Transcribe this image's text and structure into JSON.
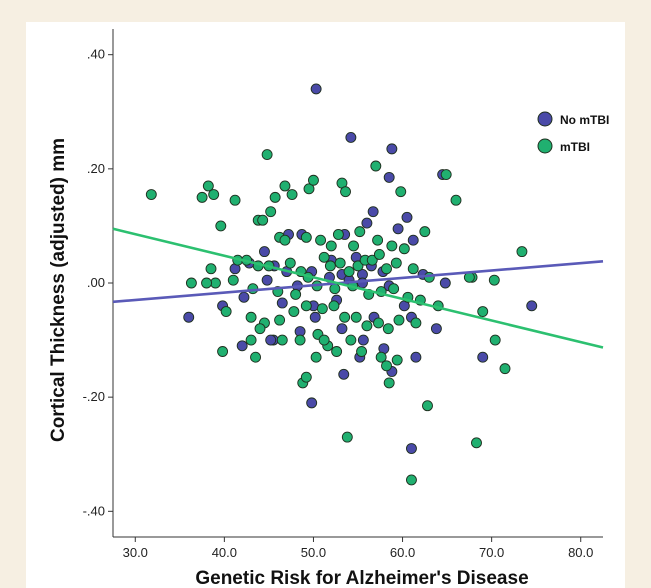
{
  "colors": {
    "no_mtbi": "#4a4aa8",
    "mtbi": "#20b070",
    "no_mtbi_line": "#5a5ab8",
    "mtbi_line": "#2cc070",
    "point_stroke": "#1f2f1f"
  },
  "chart_data": {
    "type": "scatter",
    "xlabel": "Genetic Risk for Alzheimer's Disease",
    "ylabel": "Cortical Thickness (adjusted) mm",
    "xlim": [
      27.5,
      82.5
    ],
    "ylim": [
      -0.445,
      0.445
    ],
    "x_ticks": [
      30,
      40,
      50,
      60,
      70,
      80
    ],
    "x_tick_labels": [
      "30.0",
      "40.0",
      "50.0",
      "60.0",
      "70.0",
      "80.0"
    ],
    "y_ticks": [
      0.4,
      0.2,
      0.0,
      -0.2,
      -0.4
    ],
    "y_tick_labels": [
      ".40",
      ".20",
      ".00",
      "-.20",
      "-.40"
    ],
    "grid": false,
    "legend": {
      "position": "top-right",
      "entries": [
        "No mTBI",
        "mTBI"
      ]
    },
    "series": [
      {
        "name": "No mTBI",
        "color": "#4a4aa8",
        "fit_line": {
          "x": [
            27.5,
            82.5
          ],
          "y": [
            -0.033,
            0.038
          ]
        },
        "points": [
          [
            50.3,
            0.34
          ],
          [
            54.2,
            0.255
          ],
          [
            58.8,
            0.235
          ],
          [
            58.5,
            0.185
          ],
          [
            56.7,
            0.125
          ],
          [
            60.5,
            0.115
          ],
          [
            56.0,
            0.105
          ],
          [
            53.5,
            0.085
          ],
          [
            59.5,
            0.095
          ],
          [
            61.2,
            0.075
          ],
          [
            48.7,
            0.085
          ],
          [
            44.5,
            0.055
          ],
          [
            47.2,
            0.085
          ],
          [
            52.0,
            0.04
          ],
          [
            54.8,
            0.045
          ],
          [
            56.5,
            0.03
          ],
          [
            41.2,
            0.025
          ],
          [
            42.8,
            0.035
          ],
          [
            45.6,
            0.03
          ],
          [
            49.8,
            0.02
          ],
          [
            53.2,
            0.015
          ],
          [
            55.5,
            0.015
          ],
          [
            57.8,
            0.02
          ],
          [
            62.3,
            0.015
          ],
          [
            64.8,
            0.0
          ],
          [
            36.0,
            -0.06
          ],
          [
            39.8,
            -0.04
          ],
          [
            42.2,
            -0.025
          ],
          [
            44.8,
            0.005
          ],
          [
            46.5,
            -0.035
          ],
          [
            48.2,
            -0.005
          ],
          [
            50.0,
            -0.04
          ],
          [
            51.8,
            0.01
          ],
          [
            54.0,
            0.005
          ],
          [
            55.5,
            0.0
          ],
          [
            58.5,
            -0.005
          ],
          [
            60.2,
            -0.04
          ],
          [
            61.0,
            -0.06
          ],
          [
            63.8,
            -0.08
          ],
          [
            74.5,
            -0.04
          ],
          [
            42.0,
            -0.11
          ],
          [
            45.5,
            -0.1
          ],
          [
            48.5,
            -0.085
          ],
          [
            53.2,
            -0.08
          ],
          [
            55.6,
            -0.1
          ],
          [
            57.9,
            -0.115
          ],
          [
            61.5,
            -0.13
          ],
          [
            55.2,
            -0.13
          ],
          [
            69.0,
            -0.13
          ],
          [
            53.4,
            -0.16
          ],
          [
            58.8,
            -0.155
          ],
          [
            49.8,
            -0.21
          ],
          [
            61.0,
            -0.29
          ],
          [
            45.2,
            -0.1
          ],
          [
            50.2,
            -0.06
          ],
          [
            56.8,
            -0.06
          ],
          [
            52.6,
            -0.03
          ],
          [
            47.0,
            0.02
          ],
          [
            64.5,
            0.19
          ]
        ]
      },
      {
        "name": "mTBI",
        "color": "#20b070",
        "fit_line": {
          "x": [
            27.5,
            82.5
          ],
          "y": [
            0.095,
            -0.113
          ]
        },
        "points": [
          [
            31.8,
            0.155
          ],
          [
            37.5,
            0.15
          ],
          [
            38.2,
            0.17
          ],
          [
            38.8,
            0.155
          ],
          [
            41.2,
            0.145
          ],
          [
            44.8,
            0.225
          ],
          [
            45.7,
            0.15
          ],
          [
            45.2,
            0.125
          ],
          [
            46.8,
            0.17
          ],
          [
            47.6,
            0.155
          ],
          [
            49.5,
            0.165
          ],
          [
            50.0,
            0.18
          ],
          [
            53.2,
            0.175
          ],
          [
            53.6,
            0.16
          ],
          [
            57.0,
            0.205
          ],
          [
            59.8,
            0.16
          ],
          [
            64.9,
            0.19
          ],
          [
            66.0,
            0.145
          ],
          [
            39.6,
            0.1
          ],
          [
            43.8,
            0.11
          ],
          [
            44.3,
            0.11
          ],
          [
            46.2,
            0.08
          ],
          [
            46.8,
            0.075
          ],
          [
            49.2,
            0.08
          ],
          [
            50.8,
            0.075
          ],
          [
            52.0,
            0.065
          ],
          [
            52.8,
            0.085
          ],
          [
            54.5,
            0.065
          ],
          [
            55.2,
            0.09
          ],
          [
            57.2,
            0.075
          ],
          [
            58.8,
            0.065
          ],
          [
            62.5,
            0.09
          ],
          [
            38.5,
            0.025
          ],
          [
            41.5,
            0.04
          ],
          [
            42.5,
            0.04
          ],
          [
            43.8,
            0.03
          ],
          [
            45.0,
            0.03
          ],
          [
            47.4,
            0.035
          ],
          [
            48.6,
            0.02
          ],
          [
            49.4,
            0.01
          ],
          [
            51.2,
            0.045
          ],
          [
            51.9,
            0.03
          ],
          [
            53.0,
            0.035
          ],
          [
            54.0,
            0.02
          ],
          [
            55.0,
            0.03
          ],
          [
            55.8,
            0.04
          ],
          [
            56.6,
            0.04
          ],
          [
            57.4,
            0.05
          ],
          [
            58.2,
            0.025
          ],
          [
            59.3,
            0.035
          ],
          [
            61.2,
            0.025
          ],
          [
            63.0,
            0.01
          ],
          [
            67.8,
            0.01
          ],
          [
            70.3,
            0.005
          ],
          [
            73.4,
            0.055
          ],
          [
            39.0,
            0.0
          ],
          [
            41.0,
            0.005
          ],
          [
            43.2,
            -0.01
          ],
          [
            46.0,
            -0.015
          ],
          [
            48.0,
            -0.02
          ],
          [
            50.4,
            -0.005
          ],
          [
            52.4,
            -0.01
          ],
          [
            54.4,
            -0.005
          ],
          [
            56.2,
            -0.02
          ],
          [
            57.6,
            -0.015
          ],
          [
            59.0,
            -0.01
          ],
          [
            60.6,
            -0.025
          ],
          [
            62.0,
            -0.03
          ],
          [
            64.0,
            -0.04
          ],
          [
            69.0,
            -0.05
          ],
          [
            40.2,
            -0.05
          ],
          [
            43.0,
            -0.06
          ],
          [
            44.5,
            -0.07
          ],
          [
            46.2,
            -0.065
          ],
          [
            47.8,
            -0.05
          ],
          [
            49.2,
            -0.04
          ],
          [
            51.0,
            -0.045
          ],
          [
            52.3,
            -0.04
          ],
          [
            53.5,
            -0.06
          ],
          [
            54.8,
            -0.06
          ],
          [
            56.0,
            -0.075
          ],
          [
            57.3,
            -0.07
          ],
          [
            58.4,
            -0.08
          ],
          [
            59.6,
            -0.065
          ],
          [
            61.5,
            -0.07
          ],
          [
            39.8,
            -0.12
          ],
          [
            43.0,
            -0.1
          ],
          [
            44.0,
            -0.08
          ],
          [
            46.5,
            -0.1
          ],
          [
            48.5,
            -0.1
          ],
          [
            50.5,
            -0.09
          ],
          [
            51.6,
            -0.11
          ],
          [
            52.6,
            -0.12
          ],
          [
            54.2,
            -0.1
          ],
          [
            55.4,
            -0.12
          ],
          [
            57.6,
            -0.13
          ],
          [
            58.2,
            -0.145
          ],
          [
            59.4,
            -0.135
          ],
          [
            43.5,
            -0.13
          ],
          [
            48.8,
            -0.175
          ],
          [
            49.2,
            -0.165
          ],
          [
            50.3,
            -0.13
          ],
          [
            51.2,
            -0.1
          ],
          [
            58.5,
            -0.175
          ],
          [
            70.4,
            -0.1
          ],
          [
            71.5,
            -0.15
          ],
          [
            62.8,
            -0.215
          ],
          [
            53.8,
            -0.27
          ],
          [
            68.3,
            -0.28
          ],
          [
            61.0,
            -0.345
          ],
          [
            67.5,
            0.01
          ],
          [
            36.3,
            0.0
          ],
          [
            38.0,
            0.0
          ],
          [
            60.2,
            0.06
          ]
        ]
      }
    ]
  }
}
